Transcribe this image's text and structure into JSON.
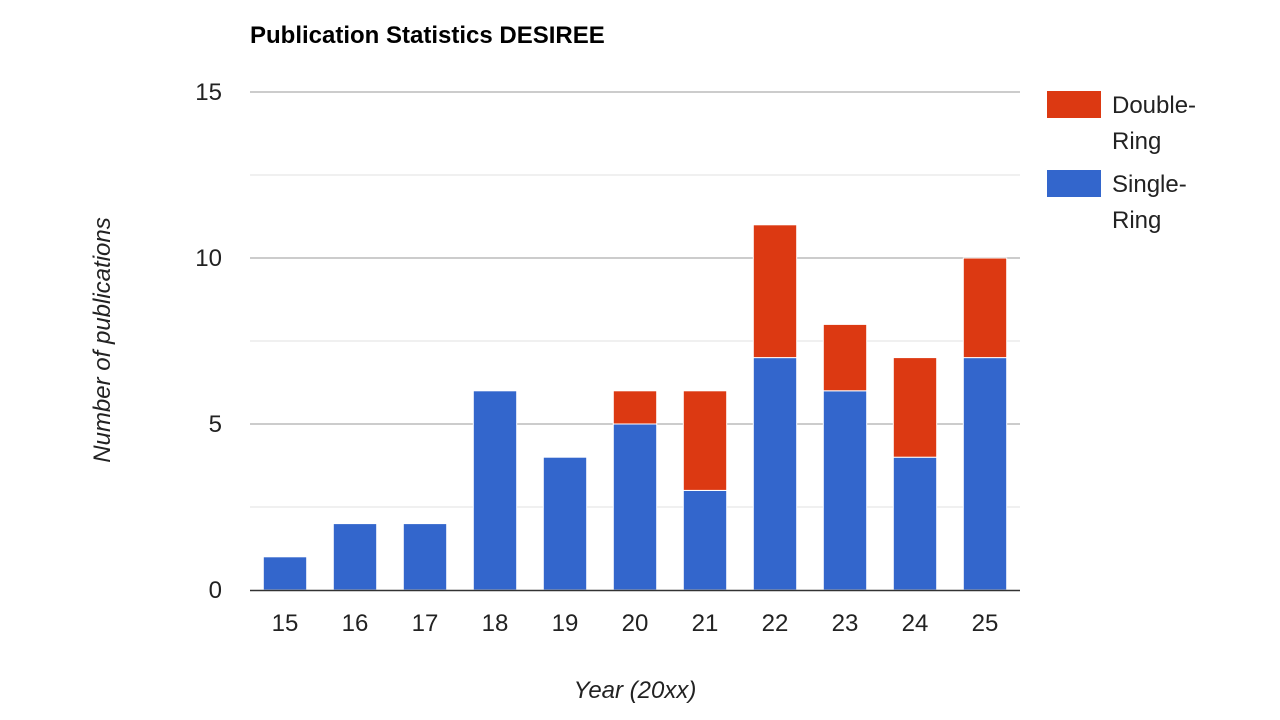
{
  "chart_data": {
    "type": "bar",
    "stacked": true,
    "title": "Publication Statistics DESIREE",
    "xlabel": "Year (20xx)",
    "ylabel": "Number of publications",
    "categories": [
      "15",
      "16",
      "17",
      "18",
      "19",
      "20",
      "21",
      "22",
      "23",
      "24",
      "25"
    ],
    "ylim": [
      0,
      15
    ],
    "yticks": [
      "0",
      "5",
      "10",
      "15"
    ],
    "grid": true,
    "legend_position": "right",
    "series": [
      {
        "name": "Single-Ring",
        "legend_lines": [
          "Single-",
          "Ring"
        ],
        "color": "#3366cc",
        "values": [
          1,
          2,
          2,
          6,
          4,
          5,
          3,
          7,
          6,
          4,
          7
        ]
      },
      {
        "name": "Double-Ring",
        "legend_lines": [
          "Double-",
          "Ring"
        ],
        "color": "#dc3912",
        "values": [
          0,
          0,
          0,
          0,
          0,
          1,
          3,
          4,
          2,
          3,
          3
        ]
      }
    ],
    "legend_order": [
      "Double-Ring",
      "Single-Ring"
    ]
  }
}
